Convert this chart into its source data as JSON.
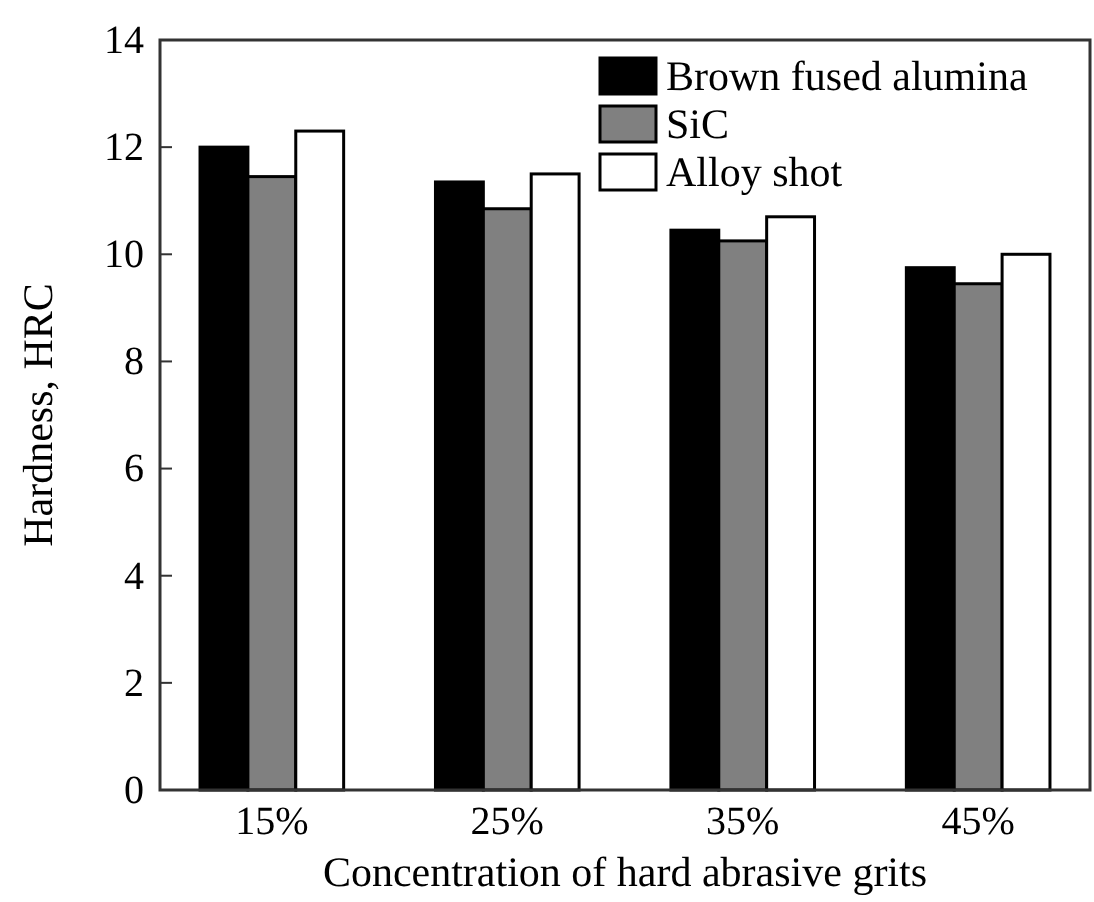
{
  "chart_data": {
    "type": "bar",
    "xlabel": "Concentration of hard abrasive grits",
    "ylabel": "Hardness, HRC",
    "categories": [
      "15%",
      "25%",
      "35%",
      "45%"
    ],
    "series": [
      {
        "name": "Brown fused alumina",
        "color": "#000000",
        "values": [
          12.0,
          11.35,
          10.45,
          9.75
        ]
      },
      {
        "name": "SiC",
        "color": "#808080",
        "values": [
          11.45,
          10.85,
          10.25,
          9.45
        ]
      },
      {
        "name": "Alloy shot",
        "color": "#ffffff",
        "values": [
          12.3,
          11.5,
          10.7,
          10.0
        ]
      }
    ],
    "ylim": [
      0,
      14
    ],
    "yticks": [
      0,
      2,
      4,
      6,
      8,
      10,
      12,
      14
    ],
    "grid": false,
    "legend": "top right"
  }
}
